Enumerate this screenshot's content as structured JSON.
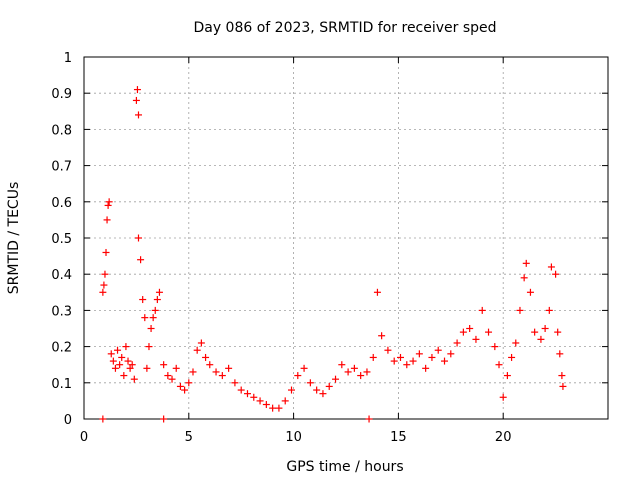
{
  "chart_data": {
    "type": "scatter",
    "title": "Day 086 of 2023, SRMTID for receiver sped",
    "xlabel": "GPS time / hours",
    "ylabel": "SRMTID / TECUs",
    "xlim": [
      0,
      25
    ],
    "ylim": [
      0,
      1
    ],
    "x_ticks": [
      0,
      5,
      10,
      15,
      20
    ],
    "x_tick_labels": [
      "0",
      "5",
      "10",
      "15",
      "20"
    ],
    "y_ticks": [
      0,
      0.1,
      0.2,
      0.3,
      0.4,
      0.5,
      0.6,
      0.7,
      0.8,
      0.9,
      1
    ],
    "y_tick_labels": [
      "0",
      "0.1",
      "0.2",
      "0.3",
      "0.4",
      "0.5",
      "0.6",
      "0.7",
      "0.8",
      "0.9",
      "1"
    ],
    "grid": true,
    "marker": "+",
    "color": "#ff0000",
    "series": [
      {
        "name": "SRMTID",
        "points": [
          [
            0.9,
            0.0
          ],
          [
            3.8,
            0.0
          ],
          [
            13.6,
            0.0
          ],
          [
            0.9,
            0.35
          ],
          [
            0.95,
            0.37
          ],
          [
            1.0,
            0.4
          ],
          [
            1.05,
            0.46
          ],
          [
            1.1,
            0.55
          ],
          [
            1.15,
            0.59
          ],
          [
            1.2,
            0.6
          ],
          [
            1.3,
            0.18
          ],
          [
            1.4,
            0.16
          ],
          [
            1.5,
            0.14
          ],
          [
            1.6,
            0.19
          ],
          [
            1.7,
            0.15
          ],
          [
            1.8,
            0.17
          ],
          [
            1.9,
            0.12
          ],
          [
            2.0,
            0.2
          ],
          [
            2.1,
            0.16
          ],
          [
            2.2,
            0.14
          ],
          [
            2.3,
            0.15
          ],
          [
            2.4,
            0.11
          ],
          [
            2.5,
            0.88
          ],
          [
            2.55,
            0.91
          ],
          [
            2.6,
            0.84
          ],
          [
            2.6,
            0.5
          ],
          [
            2.7,
            0.44
          ],
          [
            2.8,
            0.33
          ],
          [
            2.9,
            0.28
          ],
          [
            3.0,
            0.14
          ],
          [
            3.1,
            0.2
          ],
          [
            3.2,
            0.25
          ],
          [
            3.3,
            0.28
          ],
          [
            3.4,
            0.3
          ],
          [
            3.5,
            0.33
          ],
          [
            3.6,
            0.35
          ],
          [
            3.8,
            0.15
          ],
          [
            4.0,
            0.12
          ],
          [
            4.2,
            0.11
          ],
          [
            4.4,
            0.14
          ],
          [
            4.6,
            0.09
          ],
          [
            4.8,
            0.08
          ],
          [
            5.0,
            0.1
          ],
          [
            5.2,
            0.13
          ],
          [
            5.4,
            0.19
          ],
          [
            5.6,
            0.21
          ],
          [
            5.8,
            0.17
          ],
          [
            6.0,
            0.15
          ],
          [
            6.3,
            0.13
          ],
          [
            6.6,
            0.12
          ],
          [
            6.9,
            0.14
          ],
          [
            7.2,
            0.1
          ],
          [
            7.5,
            0.08
          ],
          [
            7.8,
            0.07
          ],
          [
            8.1,
            0.06
          ],
          [
            8.4,
            0.05
          ],
          [
            8.7,
            0.04
          ],
          [
            9.0,
            0.03
          ],
          [
            9.3,
            0.03
          ],
          [
            9.6,
            0.05
          ],
          [
            9.9,
            0.08
          ],
          [
            10.2,
            0.12
          ],
          [
            10.5,
            0.14
          ],
          [
            10.8,
            0.1
          ],
          [
            11.1,
            0.08
          ],
          [
            11.4,
            0.07
          ],
          [
            11.7,
            0.09
          ],
          [
            12.0,
            0.11
          ],
          [
            12.3,
            0.15
          ],
          [
            12.6,
            0.13
          ],
          [
            12.9,
            0.14
          ],
          [
            13.2,
            0.12
          ],
          [
            13.5,
            0.13
          ],
          [
            13.8,
            0.17
          ],
          [
            14.0,
            0.35
          ],
          [
            14.2,
            0.23
          ],
          [
            14.5,
            0.19
          ],
          [
            14.8,
            0.16
          ],
          [
            15.1,
            0.17
          ],
          [
            15.4,
            0.15
          ],
          [
            15.7,
            0.16
          ],
          [
            16.0,
            0.18
          ],
          [
            16.3,
            0.14
          ],
          [
            16.6,
            0.17
          ],
          [
            16.9,
            0.19
          ],
          [
            17.2,
            0.16
          ],
          [
            17.5,
            0.18
          ],
          [
            17.8,
            0.21
          ],
          [
            18.1,
            0.24
          ],
          [
            18.4,
            0.25
          ],
          [
            18.7,
            0.22
          ],
          [
            19.0,
            0.3
          ],
          [
            19.3,
            0.24
          ],
          [
            19.6,
            0.2
          ],
          [
            19.8,
            0.15
          ],
          [
            20.0,
            0.06
          ],
          [
            20.2,
            0.12
          ],
          [
            20.4,
            0.17
          ],
          [
            20.6,
            0.21
          ],
          [
            20.8,
            0.3
          ],
          [
            21.0,
            0.39
          ],
          [
            21.1,
            0.43
          ],
          [
            21.3,
            0.35
          ],
          [
            21.5,
            0.24
          ],
          [
            21.8,
            0.22
          ],
          [
            22.0,
            0.25
          ],
          [
            22.2,
            0.3
          ],
          [
            22.3,
            0.42
          ],
          [
            22.5,
            0.4
          ],
          [
            22.6,
            0.24
          ],
          [
            22.7,
            0.18
          ],
          [
            22.8,
            0.12
          ],
          [
            22.85,
            0.09
          ]
        ]
      }
    ]
  }
}
